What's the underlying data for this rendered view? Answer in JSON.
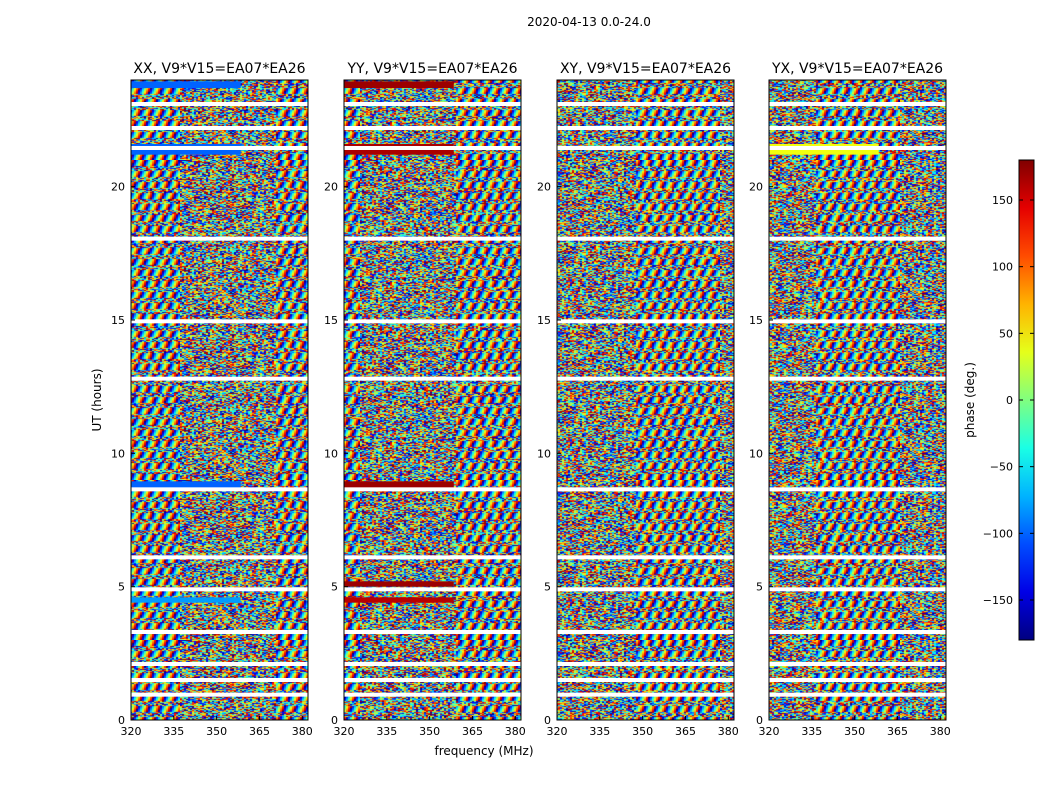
{
  "figure_title": "2020-04-13 0.0-24.0",
  "chart_data": {
    "type": "heatmap",
    "title": "2020-04-13 0.0-24.0",
    "xlabel": "frequency (MHz)",
    "ylabel": "UT (hours)",
    "xlim": [
      320,
      382
    ],
    "ylim": [
      0,
      24
    ],
    "xticks": [
      320,
      335,
      350,
      365,
      380
    ],
    "yticks": [
      0,
      5,
      10,
      15,
      20
    ],
    "panels": [
      {
        "title": "XX, V9*V15=EA07*EA26",
        "pol": "XX"
      },
      {
        "title": "YY, V9*V15=EA07*EA26",
        "pol": "YY"
      },
      {
        "title": "XY, V9*V15=EA07*EA26",
        "pol": "XY"
      },
      {
        "title": "YX, V9*V15=EA07*EA26",
        "pol": "YX"
      }
    ],
    "colorbar": {
      "label": "phase (deg.)",
      "range": [
        -180,
        180
      ],
      "ticks": [
        150,
        100,
        50,
        0,
        -50,
        -100,
        -150
      ],
      "tick_labels": [
        "150",
        "100",
        "50",
        "0",
        "−50",
        "−100",
        "−150"
      ],
      "colormap": "jet"
    },
    "flagged_ut_gaps_hours": [
      23.1,
      22.2,
      21.45,
      18.05,
      14.95,
      12.8,
      8.65,
      6.1,
      4.9,
      3.3,
      2.1,
      1.5,
      0.95
    ],
    "uniform_ut_bands": [
      {
        "ut": [
          23.7,
          23.95
        ],
        "XX": -100,
        "YY": 170,
        "XY": null,
        "YX": null
      },
      {
        "ut": [
          21.2,
          21.6
        ],
        "XX": -100,
        "YY": 165,
        "XY": null,
        "YX": 40
      },
      {
        "ut": [
          8.7,
          8.95
        ],
        "XX": -100,
        "YY": 170,
        "XY": null,
        "YX": null
      },
      {
        "ut": [
          5.0,
          5.2
        ],
        "XX": null,
        "YY": 170,
        "XY": null,
        "YX": null
      },
      {
        "ut": [
          4.4,
          4.6
        ],
        "XX": -80,
        "YY": 160,
        "XY": null,
        "YX": null
      }
    ]
  }
}
